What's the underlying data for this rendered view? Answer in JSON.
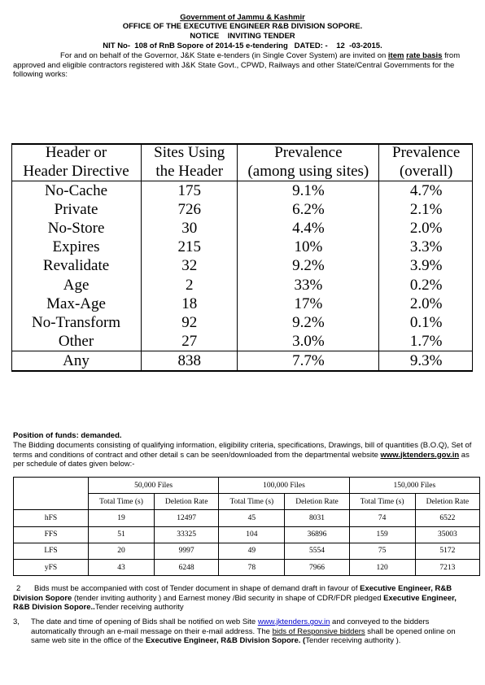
{
  "header": {
    "line1": "Government of Jammu & Kashmir",
    "line2": "OFFICE OF THE EXECUTIVE ENGINEER R&B DIVISION SOPORE.",
    "line3": "NOTICE    INVITING TENDER",
    "line4": "NIT No-  108 of RnB Sopore of 2014-15 e-tendering   DATED: -    12  -03-2015."
  },
  "intro": {
    "text_a": "For and on behalf of the Governor, J&K State e-tenders (in Single Cover System) are invited on ",
    "item_rate_a": "item",
    "item_rate_b": "rate basis",
    "text_b": " from approved and eligible contractors  registered with J&K State Govt., CPWD, Railways and other State/Central Governments for the following works:"
  },
  "big_table": {
    "headers": [
      "Header or Header Directive",
      "Sites Using the Header",
      "Prevalence (among using sites)",
      "Prevalence (overall)"
    ],
    "header_lines": [
      [
        "Header or",
        "Header Directive"
      ],
      [
        "Sites Using",
        "the Header"
      ],
      [
        "Prevalence",
        "(among using sites)"
      ],
      [
        "Prevalence",
        "(overall)"
      ]
    ],
    "rows": [
      [
        "No-Cache",
        "175",
        "9.1%",
        "4.7%"
      ],
      [
        "Private",
        "726",
        "6.2%",
        "2.1%"
      ],
      [
        "No-Store",
        "30",
        "4.4%",
        "2.0%"
      ],
      [
        "Expires",
        "215",
        "10%",
        "3.3%"
      ],
      [
        "Revalidate",
        "32",
        "9.2%",
        "3.9%"
      ],
      [
        "Age",
        "2",
        "33%",
        "0.2%"
      ],
      [
        "Max-Age",
        "18",
        "17%",
        "2.0%"
      ],
      [
        "No-Transform",
        "92",
        "9.2%",
        "0.1%"
      ],
      [
        "Other",
        "27",
        "3.0%",
        "1.7%"
      ]
    ],
    "total_row": [
      "Any",
      "838",
      "7.7%",
      "9.3%"
    ]
  },
  "funds": {
    "heading": "Position of funds: demanded.",
    "text_a": "The Bidding documents consisting of  qualifying information, eligibility criteria, specifications, Drawings, bill of quantities (B.O.Q), Set of terms and conditions of contract and other detail s can be seen/downloaded from the departmental website ",
    "website": "www.jktenders.gov.in",
    "text_b": " as per schedule of dates given below:-"
  },
  "small_table": {
    "groups": [
      "50,000 Files",
      "100,000 Files",
      "150,000 Files"
    ],
    "subheaders": [
      "Total Time (s)",
      "Deletion Rate"
    ],
    "rows": [
      [
        "hFS",
        "19",
        "12497",
        "45",
        "8031",
        "74",
        "6522"
      ],
      [
        "FFS",
        "51",
        "33325",
        "104",
        "36896",
        "159",
        "35003"
      ],
      [
        "LFS",
        "20",
        "9997",
        "49",
        "5554",
        "75",
        "5172"
      ],
      [
        "yFS",
        "43",
        "6248",
        "78",
        "7966",
        "120",
        "7213"
      ]
    ]
  },
  "item2": {
    "num": "2",
    "text_a": "Bids must be accompanied with cost of Tender document in shape of demand draft in favour of ",
    "bold_a": "Executive Engineer, R&B Division Sopore",
    "text_b": "  (tender inviting authority ) and Earnest money /Bid security in shape of CDR/FDR pledged ",
    "bold_b": "Executive Engineer, R&B Division Sopore..",
    "text_c": "Tender receiving  authority"
  },
  "item3": {
    "num": "3,",
    "text_a": "The date and time of opening of Bids shall be notified on web Site ",
    "website": "www.jktenders.gov.in",
    "text_b": " and conveyed to the bidders automatically through an e-mail message on their e-mail address. The ",
    "underlined": "bids of Responsive bidders",
    "text_c": " shall be opened online on same web site in the office of the ",
    "bold": "Executive Engineer, R&B Division Sopore. (",
    "text_d": "Tender receiving  authority )."
  }
}
